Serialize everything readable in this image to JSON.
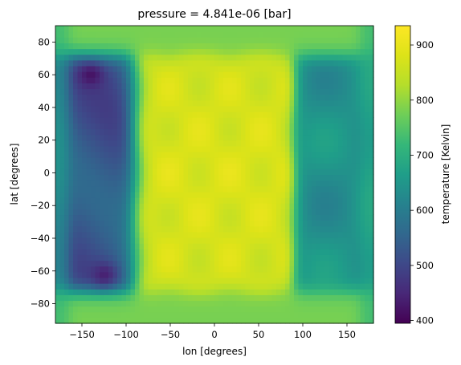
{
  "chart_data": {
    "type": "heatmap",
    "title": "pressure = 4.841e-06 [bar]",
    "xlabel": "lon [degrees]",
    "ylabel": "lat [degrees]",
    "colorbar_label": "temperature [Kelvin]",
    "colormap": "viridis",
    "xlim": [
      -180,
      180
    ],
    "ylim": [
      -92,
      90
    ],
    "clim": [
      395,
      935
    ],
    "x_ticks": [
      -150,
      -100,
      -50,
      0,
      50,
      100,
      150
    ],
    "x_tick_labels": [
      "−150",
      "−100",
      "−50",
      "0",
      "50",
      "100",
      "150"
    ],
    "y_ticks": [
      80,
      60,
      40,
      20,
      0,
      -20,
      -40,
      -60,
      -80
    ],
    "y_tick_labels": [
      "80",
      "60",
      "40",
      "20",
      "0",
      "−20",
      "−40",
      "−60",
      "−80"
    ],
    "colorbar_ticks": [
      400,
      500,
      600,
      700,
      800,
      900
    ],
    "colorbar_tick_labels": [
      "400",
      "500",
      "600",
      "700",
      "800",
      "900"
    ],
    "field_description": {
      "dayside_lon_range": [
        -90,
        90
      ],
      "dayside_temperature": 880,
      "nightside_west_temperature": 520,
      "nightside_east_temperature": 640,
      "polar_temperature": 780,
      "cold_spots": [
        {
          "lon": -140,
          "lat": 60,
          "temperature": 420
        },
        {
          "lon": -125,
          "lat": -62,
          "temperature": 440
        }
      ]
    }
  }
}
